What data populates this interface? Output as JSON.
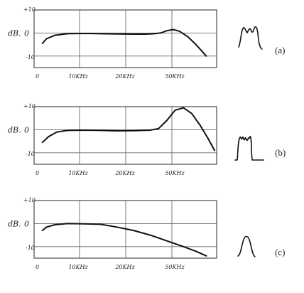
{
  "chart_data": [
    {
      "type": "line",
      "label": "(a)",
      "ylabel": "dB.",
      "y_ticks": [
        "+10",
        "0",
        "-10"
      ],
      "x_ticks": [
        "0",
        "10KHz",
        "20KHz",
        "50KHz"
      ],
      "ylim": [
        -15,
        10
      ],
      "xlim": [
        0,
        4.4
      ],
      "grid": true,
      "series": [
        {
          "x": [
            0.2,
            0.3,
            0.5,
            0.8,
            1.2,
            1.6,
            2.0,
            2.4,
            2.7,
            2.9,
            3.05,
            3.2,
            3.35,
            3.5,
            3.7,
            3.9,
            4.15
          ],
          "y": [
            -4.5,
            -2.5,
            -1,
            -0.3,
            -0.2,
            -0.3,
            -0.4,
            -0.5,
            -0.5,
            -0.3,
            0,
            1,
            1.5,
            0.8,
            -1.5,
            -5,
            -10
          ]
        }
      ]
    },
    {
      "type": "line",
      "label": "(b)",
      "ylabel": "dB.",
      "y_ticks": [
        "+10",
        "0",
        "-10"
      ],
      "x_ticks": [
        "0",
        "10KHz",
        "20KHz",
        "50KHz"
      ],
      "ylim": [
        -15,
        10
      ],
      "xlim": [
        0,
        4.4
      ],
      "grid": true,
      "series": [
        {
          "x": [
            0.2,
            0.35,
            0.55,
            0.8,
            1.2,
            1.6,
            2.0,
            2.4,
            2.8,
            3.0,
            3.2,
            3.4,
            3.6,
            3.8,
            4.0,
            4.2,
            4.35
          ],
          "y": [
            -5.5,
            -3,
            -1,
            -0.3,
            -0.2,
            -0.3,
            -0.5,
            -0.4,
            -0.2,
            0.5,
            4,
            8.5,
            9.5,
            7,
            2,
            -4,
            -9
          ]
        }
      ]
    },
    {
      "type": "line",
      "label": "(c)",
      "ylabel": "dB.",
      "y_ticks": [
        "+10",
        "0",
        "-10"
      ],
      "x_ticks": [
        "0",
        "10KHz",
        "20KHz",
        "50KHz"
      ],
      "ylim": [
        -15,
        10
      ],
      "xlim": [
        0,
        4.4
      ],
      "grid": true,
      "series": [
        {
          "x": [
            0.2,
            0.3,
            0.5,
            0.8,
            1.2,
            1.6,
            2.0,
            2.4,
            2.8,
            3.2,
            3.6,
            3.9,
            4.15
          ],
          "y": [
            -3,
            -1.5,
            -0.5,
            0,
            -0.1,
            -0.3,
            -1.5,
            -3,
            -5,
            -7.5,
            -10,
            -12,
            -14
          ]
        }
      ]
    }
  ],
  "captions": [
    "(a)",
    "(b)",
    "(c)"
  ]
}
